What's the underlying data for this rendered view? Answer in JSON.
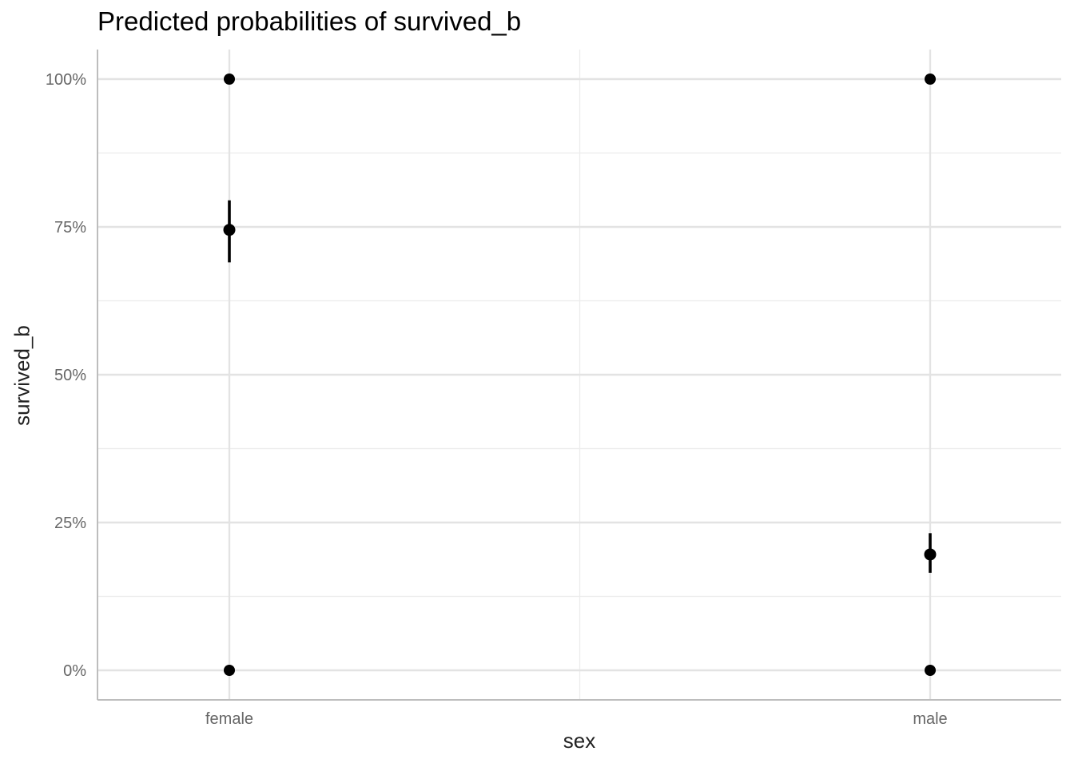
{
  "chart_data": {
    "type": "scatter",
    "title": "Predicted probabilities of survived_b",
    "xlabel": "sex",
    "ylabel": "survived_b",
    "categories": [
      "female",
      "male"
    ],
    "ylim": [
      -0.05,
      1.05
    ],
    "y_ticks": [
      0,
      0.25,
      0.5,
      0.75,
      1.0
    ],
    "y_tick_labels": [
      "0%",
      "25%",
      "50%",
      "75%",
      "100%"
    ],
    "y_minor_ticks": [
      0.125,
      0.375,
      0.625,
      0.875
    ],
    "grid": true,
    "series": [
      {
        "values": [
          0.745,
          0.196
        ],
        "ci_low": [
          0.69,
          0.165
        ],
        "ci_high": [
          0.795,
          0.232
        ]
      }
    ],
    "observed_points": [
      {
        "category": "female",
        "y": 1.0
      },
      {
        "category": "female",
        "y": 0.0
      },
      {
        "category": "male",
        "y": 1.0
      },
      {
        "category": "male",
        "y": 0.0
      }
    ]
  },
  "colors": {
    "point": "#000000",
    "grid_major": "#e3e3e3",
    "grid_minor": "#ececec",
    "axis_line": "#bdbdbd",
    "tick_text": "#666666"
  }
}
